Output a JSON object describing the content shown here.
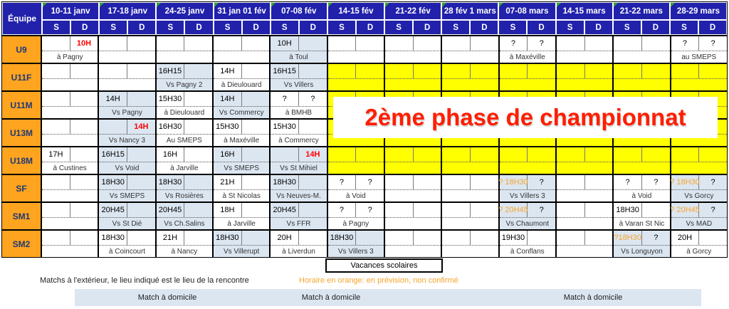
{
  "colors": {
    "header_blue": "#2121AC",
    "team_orange": "#FFA41F",
    "home_light_blue": "#DCE6F1",
    "second_phase_yellow": "#FFFF00",
    "confirmed_red": "#FF0000",
    "provisional_orange": "#F5A42C"
  },
  "banner": {
    "text": "2ème phase de championnat"
  },
  "vacances": {
    "text": "Vacances scolaires"
  },
  "notes": {
    "away_note": "Matchs à l'extérieur, le lieu indiqué est le lieu de la rencontre",
    "orange_note": "Horaire en orange: en prévision, non confirmé",
    "home_label": "Match à domicile"
  },
  "table": {
    "corner_label": "Équipe",
    "day_initials": [
      "S",
      "D"
    ],
    "columns": [
      "10-11 janv",
      "17-18 janv",
      "24-25 janv",
      "31 jan 01 fév",
      "07-08 fév",
      "14-15 fév",
      "21-22 fév",
      "28 fév 1 mars",
      "07-08 mars",
      "14-15 mars",
      "21-22 mars",
      "28-29 mars"
    ],
    "teams": [
      {
        "name": "U9",
        "cells": [
          {
            "d": "10H",
            "dc": "red",
            "l": "à Pagny"
          },
          {},
          {},
          {},
          {
            "s": "10H",
            "l": "à Toul",
            "bg": "blue"
          },
          {},
          {},
          {},
          {
            "s": "?",
            "d": "?",
            "l": "à Maxéville"
          },
          {},
          {},
          {
            "s": "?",
            "d": "?",
            "l": "au SMEPS"
          }
        ]
      },
      {
        "name": "U11F",
        "cells": [
          {},
          {},
          {
            "s": "16H15",
            "l": "Vs Pagny 2",
            "bg": "blue"
          },
          {
            "s": "14H",
            "l": "à Dieulouard"
          },
          {
            "s": "16H15",
            "l": "Vs Villers",
            "bg": "blue"
          },
          {
            "bg": "yellow"
          },
          {
            "bg": "yellow"
          },
          {
            "bg": "yellow"
          },
          {
            "bg": "yellow"
          },
          {
            "bg": "yellow"
          },
          {
            "bg": "yellow"
          },
          {
            "bg": "yellow"
          }
        ]
      },
      {
        "name": "U11M",
        "cells": [
          {},
          {
            "s": "14H",
            "l": "Vs Pagny",
            "bg": "blue"
          },
          {
            "s": "15H30",
            "l": "à Dieulouard"
          },
          {
            "s": "14H",
            "l": "Vs Commercy",
            "bg": "blue"
          },
          {
            "s": "?",
            "d": "?",
            "l": "à BMHB"
          },
          {
            "bg": "yellow"
          },
          {
            "bg": "yellow"
          },
          {
            "bg": "yellow"
          },
          {
            "bg": "yellow"
          },
          {
            "bg": "yellow"
          },
          {
            "bg": "yellow"
          },
          {
            "bg": "yellow"
          }
        ]
      },
      {
        "name": "U13M",
        "cells": [
          {},
          {
            "d": "14H",
            "dc": "red",
            "l": "Vs Nancy 3",
            "bg": "blue"
          },
          {
            "s": "16H30",
            "l": "Au SMEPS"
          },
          {
            "s": "15H30",
            "l": "à Maxéville"
          },
          {
            "s": "15H30",
            "l": "à Commercy"
          },
          {
            "bg": "yellow"
          },
          {
            "bg": "yellow"
          },
          {
            "bg": "yellow"
          },
          {
            "bg": "yellow"
          },
          {
            "bg": "yellow"
          },
          {
            "bg": "yellow"
          },
          {
            "bg": "yellow"
          }
        ]
      },
      {
        "name": "U18M",
        "cells": [
          {
            "s": "17H",
            "l": "à Custines"
          },
          {
            "s": "16H15",
            "l": "Vs Void",
            "bg": "blue"
          },
          {
            "s": "16H",
            "l": "à Jarville"
          },
          {
            "s": "16H",
            "l": "Vs SMEPS",
            "bg": "blue"
          },
          {
            "d": "14H",
            "dc": "red",
            "l": "Vs St Mihiel",
            "bg": "blue"
          },
          {
            "bg": "yellow"
          },
          {
            "bg": "yellow"
          },
          {
            "bg": "yellow"
          },
          {
            "bg": "yellow"
          },
          {
            "bg": "yellow"
          },
          {
            "bg": "yellow"
          },
          {
            "bg": "yellow"
          }
        ]
      },
      {
        "name": "SF",
        "cells": [
          {},
          {
            "s": "18H30",
            "l": "Vs SMEPS",
            "bg": "blue"
          },
          {
            "s": "18H30",
            "l": "Vs Rosières",
            "bg": "blue"
          },
          {
            "s": "21H",
            "l": "à St Nicolas"
          },
          {
            "s": "18H30",
            "l": "Vs Neuves-M.",
            "bg": "blue"
          },
          {
            "s": "?",
            "d": "?",
            "l": "à Void"
          },
          {},
          {},
          {
            "s": "? 18H30",
            "sc": "orange",
            "d": "?",
            "l": "Vs Villers 3",
            "bg": "blue"
          },
          {},
          {
            "s": "?",
            "d": "?",
            "l": "à Void"
          },
          {
            "s": "? 18H30",
            "sc": "orange",
            "d": "?",
            "l": "Vs Gorcy",
            "bg": "blue"
          }
        ]
      },
      {
        "name": "SM1",
        "cells": [
          {},
          {
            "s": "20H45",
            "l": "Vs St Dié",
            "bg": "blue"
          },
          {
            "s": "20H45",
            "l": "Vs Ch.Salins",
            "bg": "blue"
          },
          {
            "s": "18H",
            "l": "à Jarville"
          },
          {
            "s": "20H45",
            "l": "Vs FFR",
            "bg": "blue"
          },
          {
            "s": "?",
            "d": "?",
            "l": "à Pagny"
          },
          {},
          {},
          {
            "s": "? 20H45",
            "sc": "orange",
            "d": "?",
            "l": "Vs Chaumont",
            "bg": "blue"
          },
          {},
          {
            "s": "18H30",
            "l": "à Varan St Nic"
          },
          {
            "s": "? 20H45",
            "sc": "orange",
            "d": "?",
            "l": "Vs MAD",
            "bg": "blue"
          }
        ]
      },
      {
        "name": "SM2",
        "cells": [
          {},
          {
            "s": "18H30",
            "l": "à Coincourt"
          },
          {
            "s": "21H",
            "l": "à Nancy"
          },
          {
            "s": "18H30",
            "l": "Vs Villerupt",
            "bg": "blue"
          },
          {
            "s": "20H",
            "l": "à Liverdun"
          },
          {
            "s": "18H30",
            "l": "Vs Villers 3",
            "bg": "blue"
          },
          {},
          {},
          {
            "s": "19H30",
            "l": "à Conflans"
          },
          {},
          {
            "s": "?18H30",
            "sc": "orange",
            "d": "?",
            "l": "Vs Longuyon",
            "bg": "blue"
          },
          {
            "s": "20H",
            "l": "à Gorcy"
          }
        ]
      }
    ]
  }
}
